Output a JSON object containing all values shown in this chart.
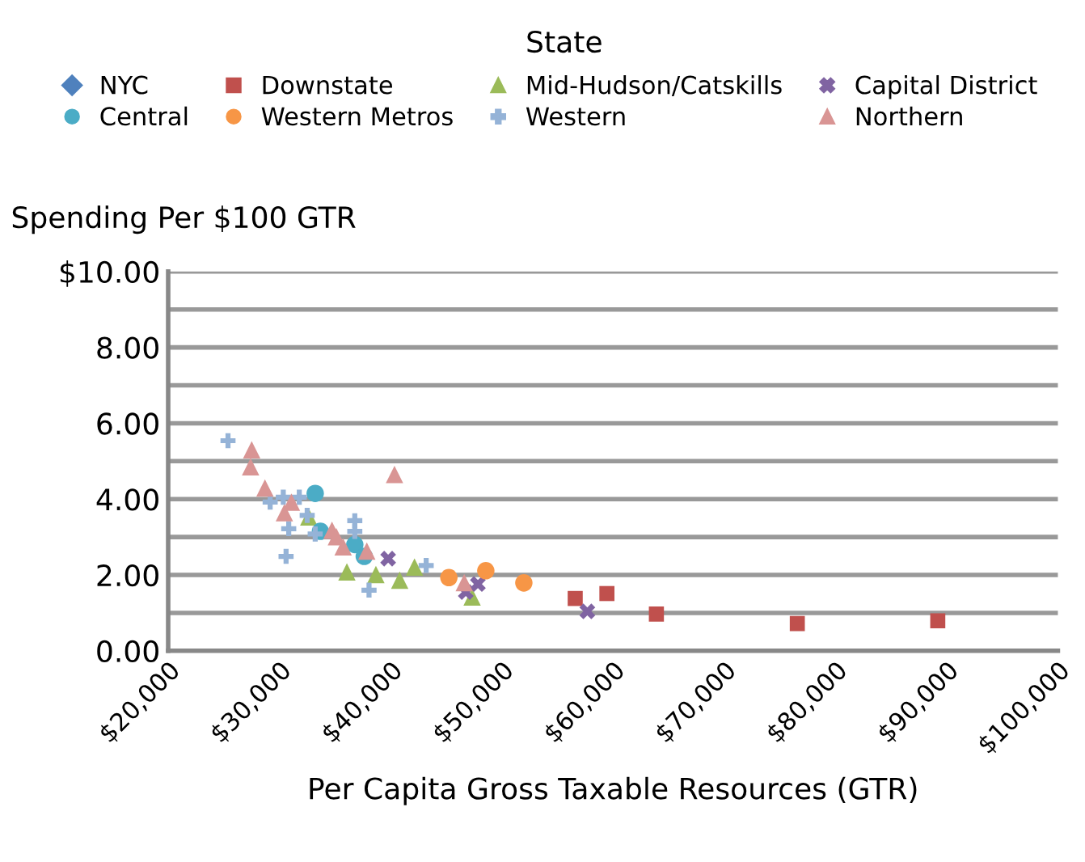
{
  "chart_data": {
    "type": "scatter",
    "title": "State",
    "ylabel": "Spending Per $100 GTR",
    "xlabel": "Per Capita Gross Taxable Resources (GTR)",
    "xlim": [
      20000,
      100000
    ],
    "ylim": [
      0,
      10
    ],
    "xticks": [
      {
        "value": 20000,
        "label": "$20,000"
      },
      {
        "value": 30000,
        "label": "$30,000"
      },
      {
        "value": 40000,
        "label": "$40,000"
      },
      {
        "value": 50000,
        "label": "$50,000"
      },
      {
        "value": 60000,
        "label": "$60,000"
      },
      {
        "value": 70000,
        "label": "$70,000"
      },
      {
        "value": 80000,
        "label": "$80,000"
      },
      {
        "value": 90000,
        "label": "$90,000"
      },
      {
        "value": 100000,
        "label": "$100,000"
      }
    ],
    "yticks": [
      {
        "value": 0,
        "label": "0.00"
      },
      {
        "value": 1,
        "label": null
      },
      {
        "value": 2,
        "label": "2.00"
      },
      {
        "value": 3,
        "label": null
      },
      {
        "value": 4,
        "label": "4.00"
      },
      {
        "value": 5,
        "label": null
      },
      {
        "value": 6,
        "label": "6.00"
      },
      {
        "value": 7,
        "label": null
      },
      {
        "value": 8,
        "label": "8.00"
      },
      {
        "value": 9,
        "label": null
      },
      {
        "value": 10,
        "label": "$10.00"
      }
    ],
    "grid": "y",
    "legend": "top",
    "series": [
      {
        "name": "NYC",
        "color": "#4f81bd",
        "marker": "diamond"
      },
      {
        "name": "Downstate",
        "color": "#c0504d",
        "marker": "square",
        "x": [
          56600,
          59450,
          63900,
          76570,
          89200
        ],
        "values": [
          1.38,
          1.51,
          0.97,
          0.72,
          0.79
        ]
      },
      {
        "name": "Mid-Hudson/Catskills",
        "color": "#9bbb59",
        "marker": "triangle",
        "x": [
          32640,
          36070,
          38680,
          40820,
          42150,
          47330
        ],
        "values": [
          3.53,
          2.08,
          2.01,
          1.86,
          2.21,
          1.42
        ]
      },
      {
        "name": "Capital District",
        "color": "#8064a2",
        "marker": "cross",
        "x": [
          39780,
          46760,
          47850,
          57690
        ],
        "values": [
          2.43,
          1.55,
          1.76,
          1.04
        ]
      },
      {
        "name": "Central",
        "color": "#4bacc6",
        "marker": "circle",
        "x": [
          33220,
          33690,
          36780,
          37630
        ],
        "values": [
          4.15,
          3.15,
          2.8,
          2.49
        ]
      },
      {
        "name": "Western Metros",
        "color": "#f79646",
        "marker": "circle",
        "x": [
          45240,
          48560,
          51980
        ],
        "values": [
          1.93,
          2.11,
          1.79
        ]
      },
      {
        "name": "Western",
        "color": "#95b3d7",
        "marker": "plus",
        "x": [
          25380,
          29170,
          30350,
          30600,
          30840,
          31790,
          32500,
          33220,
          36780,
          36780,
          38060,
          43200
        ],
        "values": [
          5.54,
          3.92,
          4.05,
          2.49,
          3.22,
          4.05,
          3.57,
          3.08,
          3.43,
          3.15,
          1.6,
          2.25
        ]
      },
      {
        "name": "Northern",
        "color": "#d99594",
        "marker": "triangle",
        "x": [
          27410,
          27510,
          28700,
          30450,
          31080,
          34730,
          35120,
          35730,
          37860,
          40350,
          46620
        ],
        "values": [
          4.85,
          5.3,
          4.29,
          3.64,
          3.92,
          3.18,
          3.01,
          2.74,
          2.63,
          4.65,
          1.8
        ]
      }
    ]
  }
}
